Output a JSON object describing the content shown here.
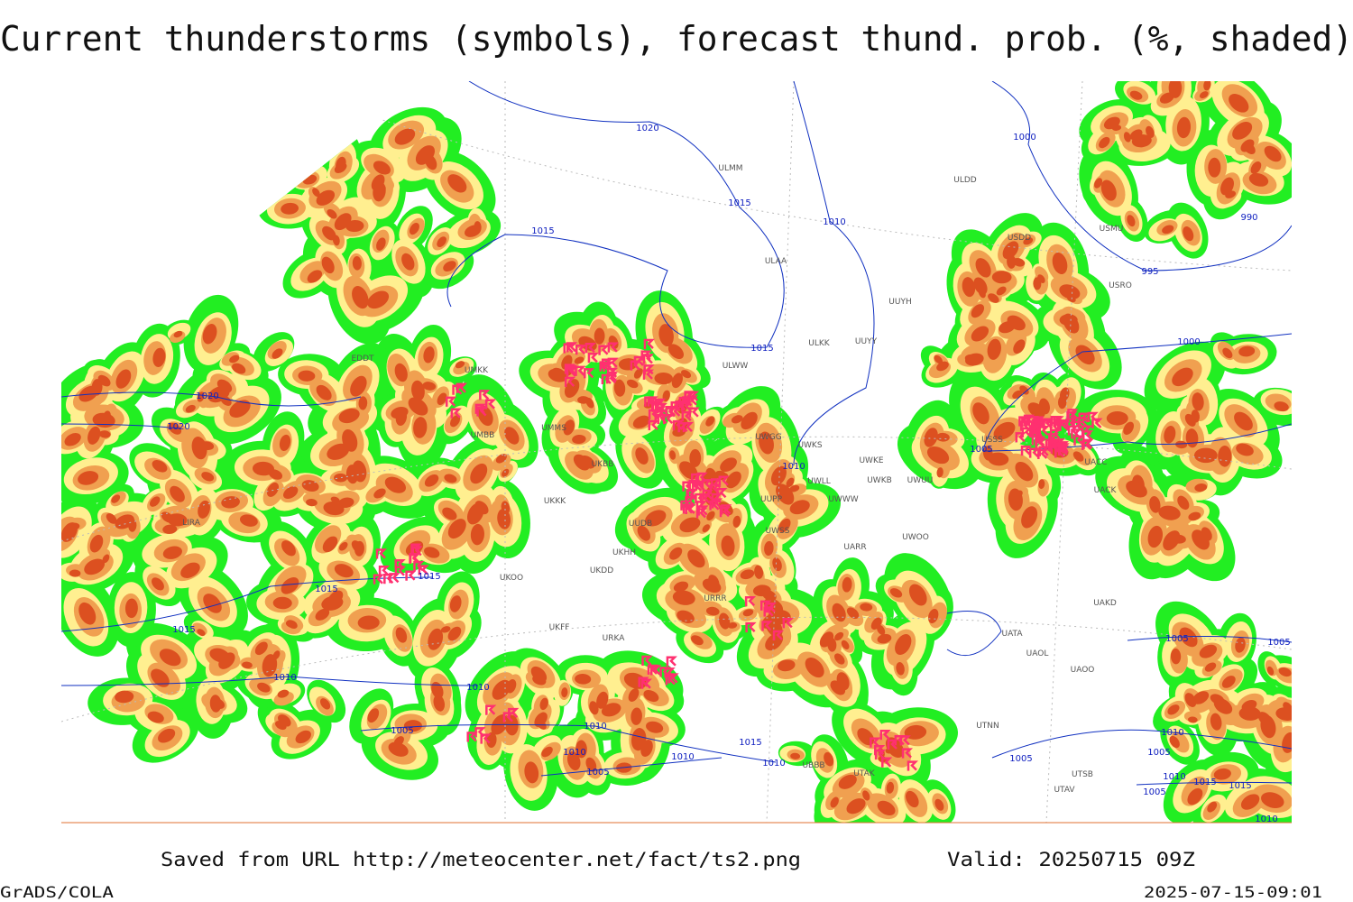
{
  "title": "Current thunderstorms (symbols), forecast thund. prob. (%, shaded)",
  "footer": {
    "source": "Saved from URL http://meteocenter.net/fact/ts2.png",
    "valid": "Valid: 20250715 09Z",
    "software": "GrADS/COLA",
    "timestamp": "2025-07-15-09:01"
  },
  "isobars": [
    "1020",
    "1015",
    "1010",
    "1015",
    "1000",
    "990",
    "995",
    "1000",
    "1015",
    "1020",
    "1020",
    "1005",
    "1010",
    "1015",
    "1015",
    "1015",
    "1010",
    "1010",
    "1005",
    "1010",
    "1010",
    "1005",
    "1010",
    "1015",
    "1010",
    "1005",
    "1005",
    "1005",
    "1010",
    "1005",
    "1010",
    "1015",
    "1015",
    "1005",
    "1010"
  ],
  "stations": [
    "ULMM",
    "ULDD",
    "USDD",
    "USMU",
    "ULAA",
    "UUYH",
    "USRO",
    "ULKK",
    "ULWW",
    "UUYY",
    "UWGG",
    "UWKS",
    "UWKE",
    "UWKB",
    "UWUU",
    "UWLL",
    "UWWW",
    "UUPP",
    "UWSS",
    "UARR",
    "UWOO",
    "UAKD",
    "UATA",
    "UAOL",
    "UAOO",
    "UTNN",
    "UTAK",
    "UBBB",
    "UTSB",
    "UTAV",
    "LIRA",
    "EDDT",
    "UMKK",
    "UMMS",
    "UMBB",
    "UKBB",
    "UKKK",
    "UUDB",
    "UKHH",
    "UKDD",
    "UKFF",
    "UKOO",
    "URKA",
    "URRR",
    "USSS",
    "UACC",
    "UACK"
  ]
}
